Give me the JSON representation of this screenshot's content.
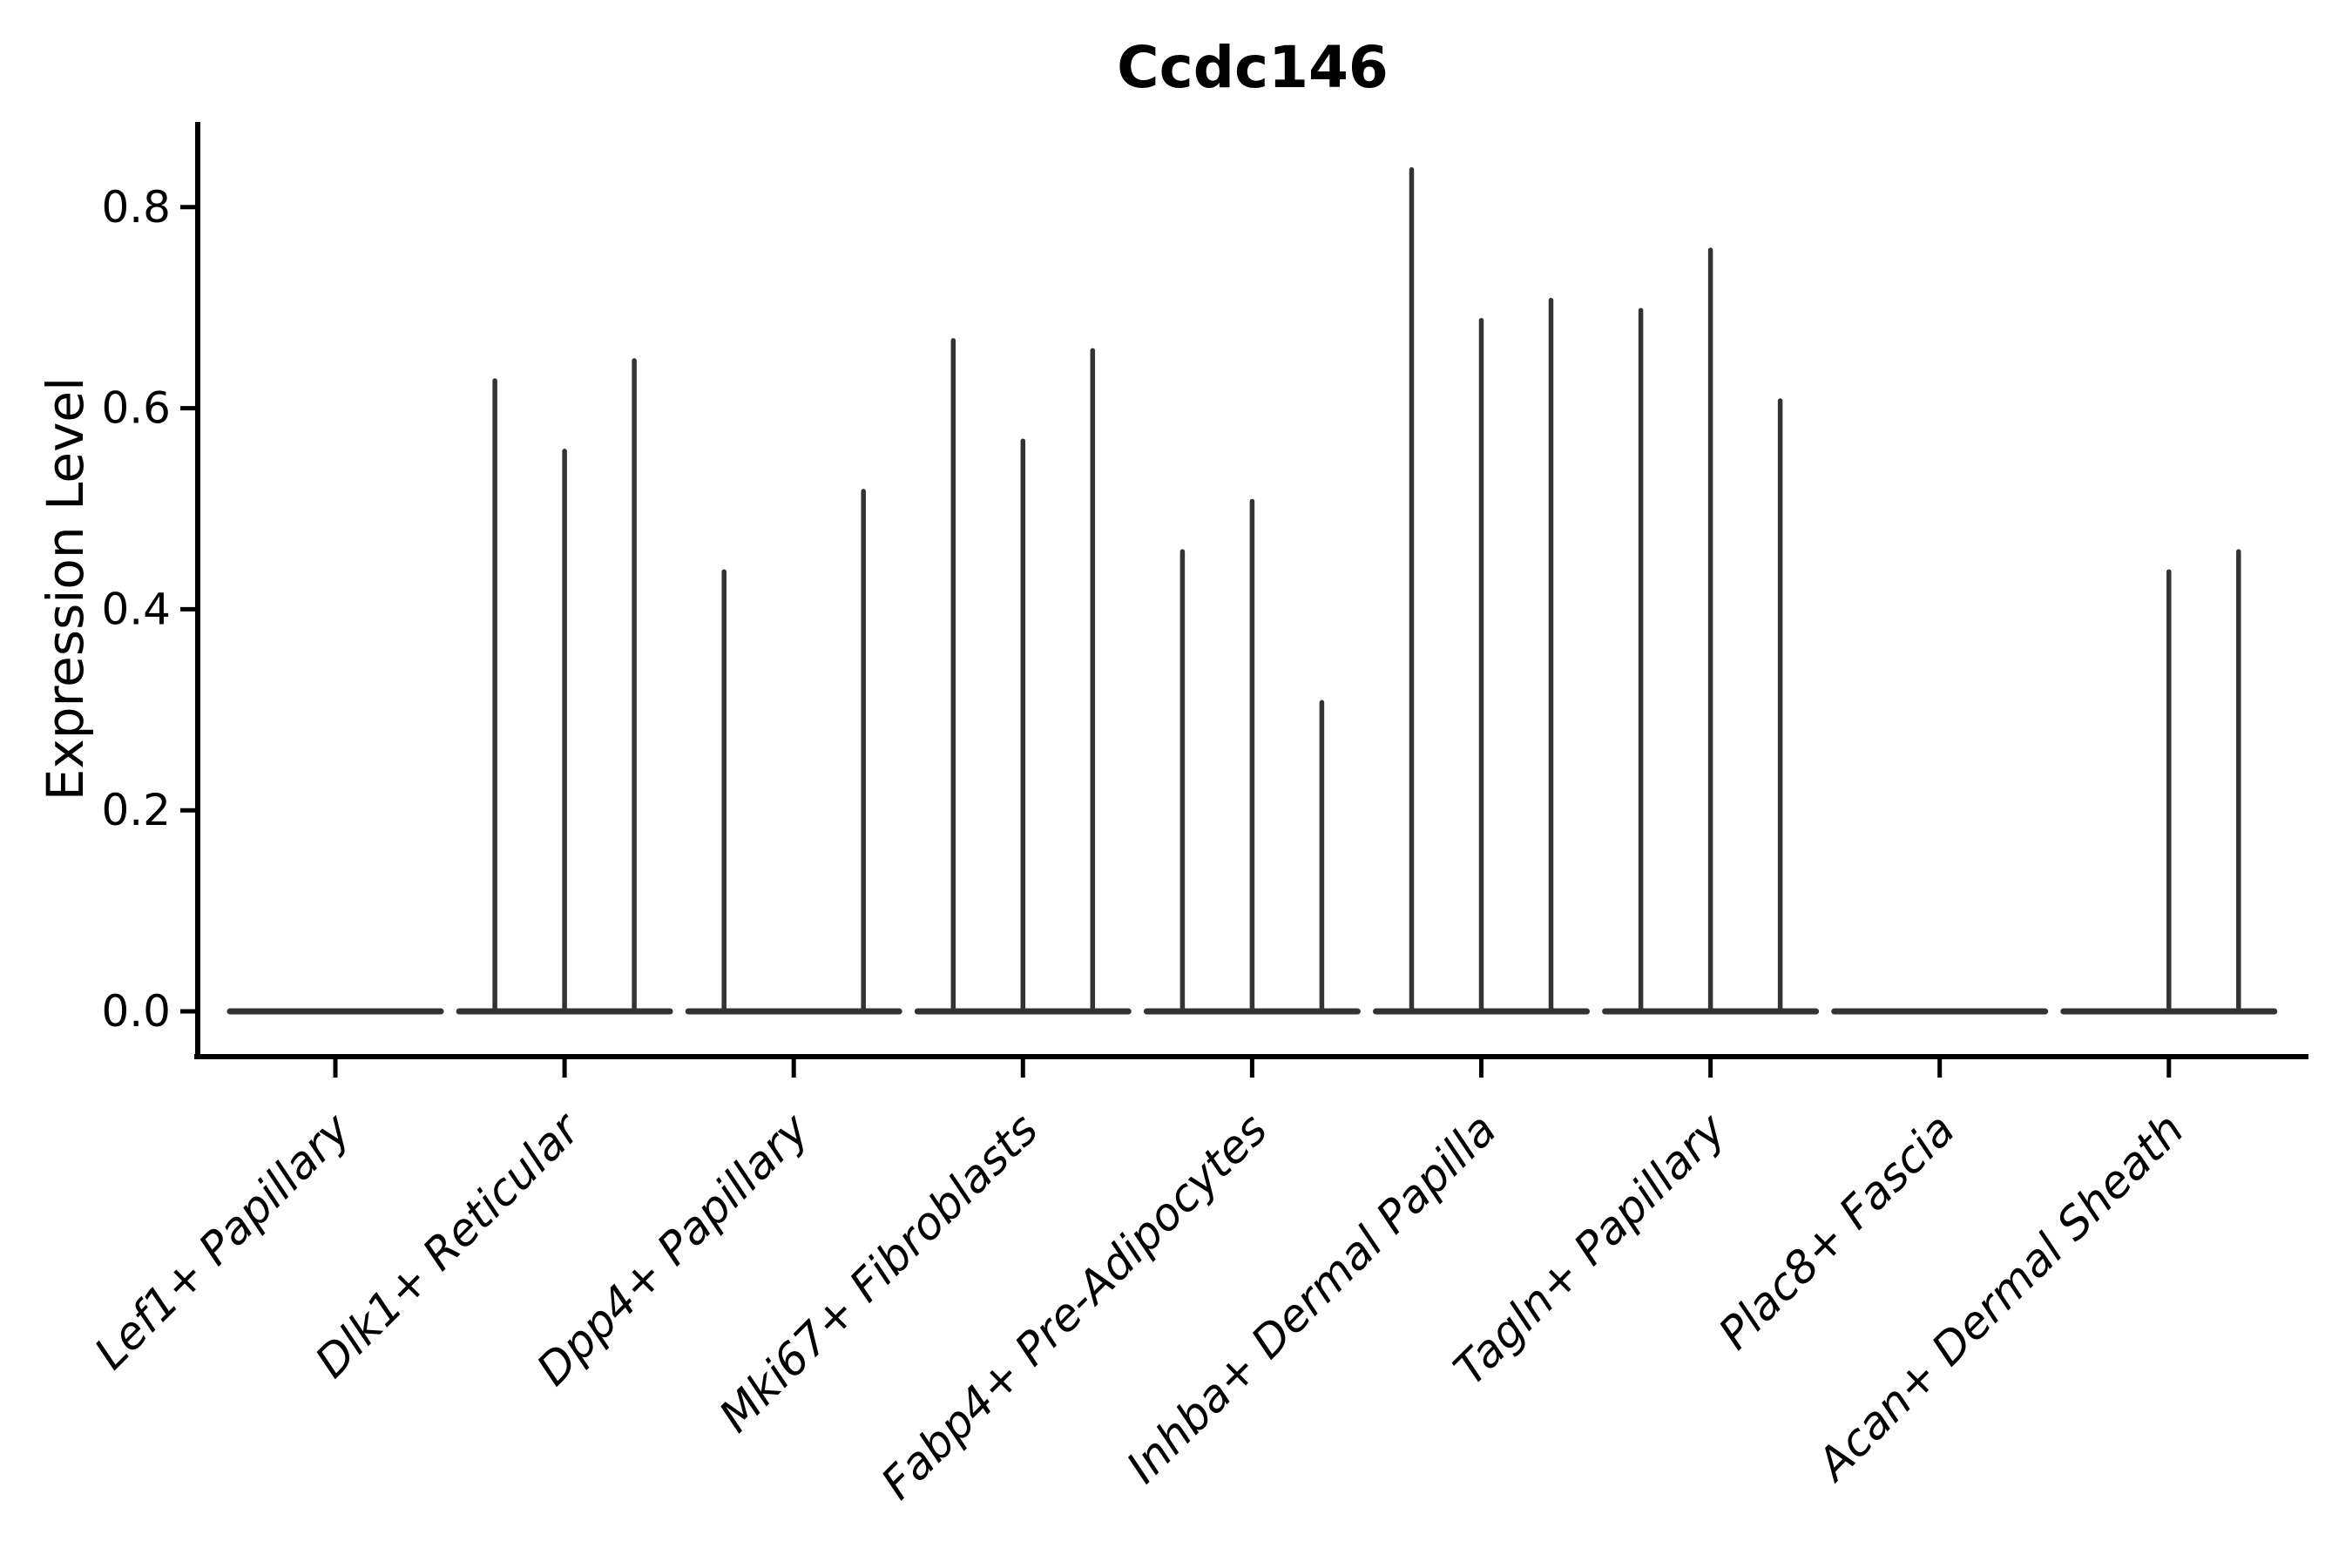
{
  "chart_data": {
    "type": "violin",
    "title": "Ccdc146",
    "ylabel": "Expression Level",
    "xlabel": "",
    "categories": [
      "Lef1+ Papillary",
      "Dlk1+ Reticular",
      "Dpp4+ Papillary",
      "Mki67+ Fibroblasts",
      "Fabp4+ Pre-Adipocytes",
      "Inhba+ Dermal Papilla",
      "Tagln+ Papillary",
      "Plac8+ Fascia",
      "Acan+ Dermal Sheath"
    ],
    "violins_per_category": 3,
    "series": [
      {
        "name": "violin-max-values",
        "values": [
          [
            0,
            0,
            0
          ],
          [
            0.63,
            0.56,
            0.65
          ],
          [
            0.44,
            0,
            0.52
          ],
          [
            0.67,
            0.57,
            0.66
          ],
          [
            0.46,
            0.51,
            0.31
          ],
          [
            0.84,
            0.69,
            0.71
          ],
          [
            0.7,
            0.76,
            0.61
          ],
          [
            0,
            0,
            0
          ],
          [
            0,
            0.44,
            0.46
          ]
        ]
      }
    ],
    "yticks": [
      0.0,
      0.2,
      0.4,
      0.6,
      0.8
    ],
    "ytick_labels": [
      "0.0",
      "0.2",
      "0.4",
      "0.6",
      "0.8"
    ],
    "ylim": [
      -0.04,
      0.88
    ],
    "grid": false,
    "legend": "none",
    "colors": {
      "violin": "#333333",
      "axis": "#000000",
      "text": "#000000",
      "background": "#ffffff"
    }
  }
}
